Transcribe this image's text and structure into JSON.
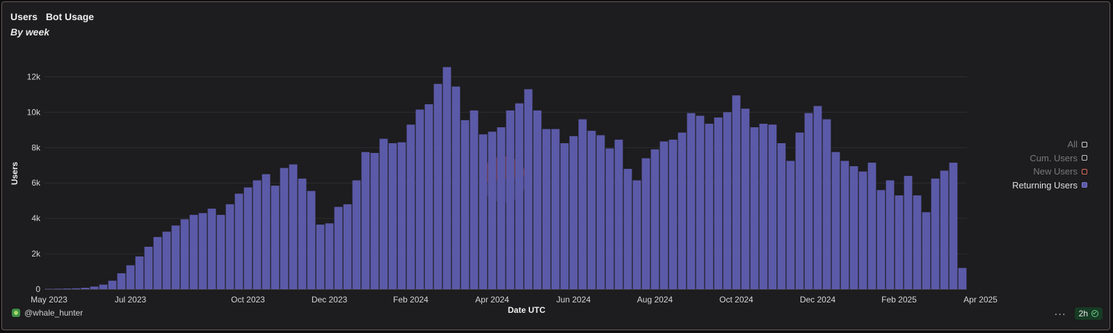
{
  "header": {
    "tab_users": "Users",
    "tab_bot_usage": "Bot Usage",
    "subtitle": "By week"
  },
  "legend": {
    "items": [
      {
        "label": "All",
        "active": false
      },
      {
        "label": "Cum. Users",
        "active": false
      },
      {
        "label": "New Users",
        "active": false
      },
      {
        "label": "Returning Users",
        "active": true
      }
    ]
  },
  "footer": {
    "author": "@whale_hunter",
    "refresh_label": "2h",
    "more_label": "···"
  },
  "colors": {
    "bar": "#5b5aa8",
    "background": "#1d1c1e",
    "grid": "#2e2e31",
    "tick_text": "#d8d8d8"
  },
  "chart_data": {
    "type": "bar",
    "title": "Users",
    "xlabel": "Date UTC",
    "ylabel": "Users",
    "ylim": [
      0,
      12000
    ],
    "yticks": [
      0,
      2000,
      4000,
      6000,
      8000,
      10000,
      12000
    ],
    "ytick_labels": [
      "0",
      "2k",
      "4k",
      "6k",
      "8k",
      "10k",
      "12k"
    ],
    "xticks": [
      {
        "label": "May 2023",
        "index": 0
      },
      {
        "label": "Jul 2023",
        "index": 9
      },
      {
        "label": "Oct 2023",
        "index": 22
      },
      {
        "label": "Dec 2023",
        "index": 31
      },
      {
        "label": "Feb 2024",
        "index": 40
      },
      {
        "label": "Apr 2024",
        "index": 49
      },
      {
        "label": "Jun 2024",
        "index": 58
      },
      {
        "label": "Aug 2024",
        "index": 67
      },
      {
        "label": "Oct 2024",
        "index": 76
      },
      {
        "label": "Dec 2024",
        "index": 85
      },
      {
        "label": "Feb 2025",
        "index": 94
      },
      {
        "label": "Apr 2025",
        "index": 103
      }
    ],
    "series": [
      {
        "name": "Returning Users",
        "values": [
          20,
          30,
          40,
          50,
          80,
          150,
          260,
          480,
          900,
          1350,
          1850,
          2400,
          2950,
          3250,
          3600,
          3950,
          4200,
          4300,
          4550,
          4200,
          4800,
          5400,
          5750,
          6150,
          6500,
          5850,
          6850,
          7050,
          6250,
          5550,
          3650,
          3720,
          4650,
          4800,
          6150,
          7750,
          7700,
          8500,
          8250,
          8300,
          9300,
          10150,
          10450,
          11600,
          12550,
          11450,
          9550,
          10100,
          8750,
          8900,
          9150,
          10100,
          10500,
          11300,
          10100,
          9050,
          9050,
          8250,
          8650,
          9600,
          8950,
          8700,
          7950,
          8450,
          6800,
          6150,
          7400,
          7900,
          8350,
          8450,
          8850,
          9950,
          9800,
          9350,
          9700,
          10000,
          10950,
          10200,
          9150,
          9350,
          9300,
          8250,
          7250,
          8850,
          9950,
          10350,
          9600,
          7750,
          7250,
          6950,
          6650,
          7150,
          5600,
          6150,
          5300,
          6400,
          5300,
          4350,
          6250,
          6700,
          7150,
          1200
        ]
      }
    ]
  }
}
